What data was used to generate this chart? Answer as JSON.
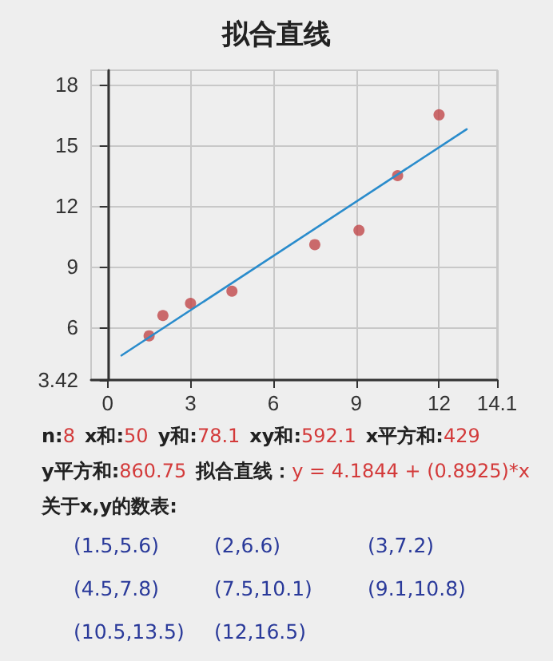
{
  "chart_data": {
    "type": "scatter",
    "title": "拟合直线",
    "xlim": [
      -0.6,
      14.1
    ],
    "xticks": [
      0,
      3,
      6,
      9,
      12,
      14.1
    ],
    "ylim": [
      3.42,
      18.7
    ],
    "yticks": [
      3.42,
      6,
      9,
      12,
      15,
      18
    ],
    "grid": true,
    "marker": "circle",
    "series": [
      {
        "color": "#c0474a",
        "x": [
          1.5,
          2,
          3,
          4.5,
          7.5,
          9.1,
          10.5,
          12
        ],
        "values": [
          5.6,
          6.6,
          7.2,
          7.8,
          10.1,
          10.8,
          13.5,
          16.5
        ]
      },
      {
        "type": "line",
        "color": "#2a8ccc",
        "marker": "none",
        "line_style": "solid",
        "x": [
          0.5,
          13
        ],
        "values": [
          4.63,
          15.79
        ]
      }
    ],
    "annotations": [
      "n:8",
      "x和:50",
      "y和:78.1",
      "xy和:592.1",
      "x平方和:429",
      "y平方和:860.75",
      "拟合直线：y = 4.1844 + (0.8925)*x",
      "关于x,y的数表:",
      "(1.5,5.6)",
      "(2,6.6)",
      "(3,7.2)",
      "(4.5,7.8)",
      "(7.5,10.1)",
      "(9.1,10.8)",
      "(10.5,13.5)",
      "(12,16.5)"
    ]
  }
}
